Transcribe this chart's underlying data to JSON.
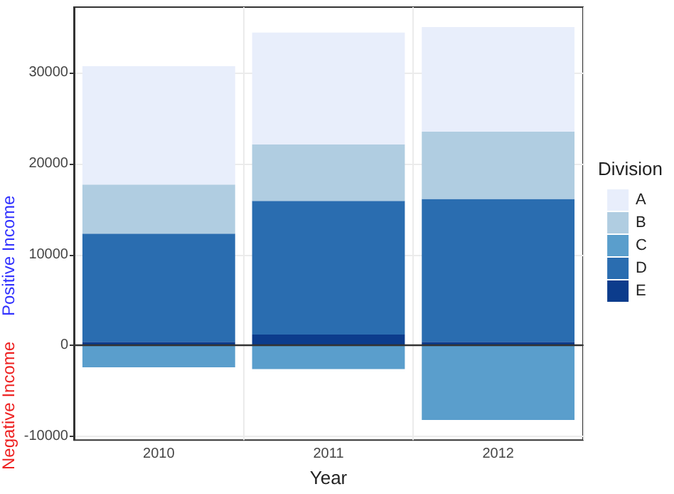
{
  "chart_data": {
    "type": "bar",
    "stacked": true,
    "xlabel": "Year",
    "legend_title": "Division",
    "legend": "right",
    "categories": [
      "2010",
      "2011",
      "2012"
    ],
    "series": [
      {
        "name": "E",
        "color": "#0c3c8c",
        "values": [
          400,
          1200,
          400
        ]
      },
      {
        "name": "D",
        "color": "#2a6db0",
        "values": [
          11900,
          14700,
          15700
        ]
      },
      {
        "name": "C",
        "color": "#5a9ecc",
        "values": [
          -2400,
          -2600,
          -8200
        ]
      },
      {
        "name": "B",
        "color": "#b0cde1",
        "values": [
          5400,
          6200,
          7400
        ]
      },
      {
        "name": "A",
        "color": "#e8eefb",
        "values": [
          13000,
          12300,
          11500
        ]
      }
    ],
    "ylim": [
      -10400,
      37200
    ],
    "yticks": [
      -10000,
      0,
      10000,
      20000,
      30000
    ],
    "grid": true,
    "ref_lines": [
      {
        "axis": "y",
        "value": 0,
        "color": "#333333"
      }
    ],
    "annotations": [
      "Positive Income",
      "Negative Income"
    ]
  }
}
